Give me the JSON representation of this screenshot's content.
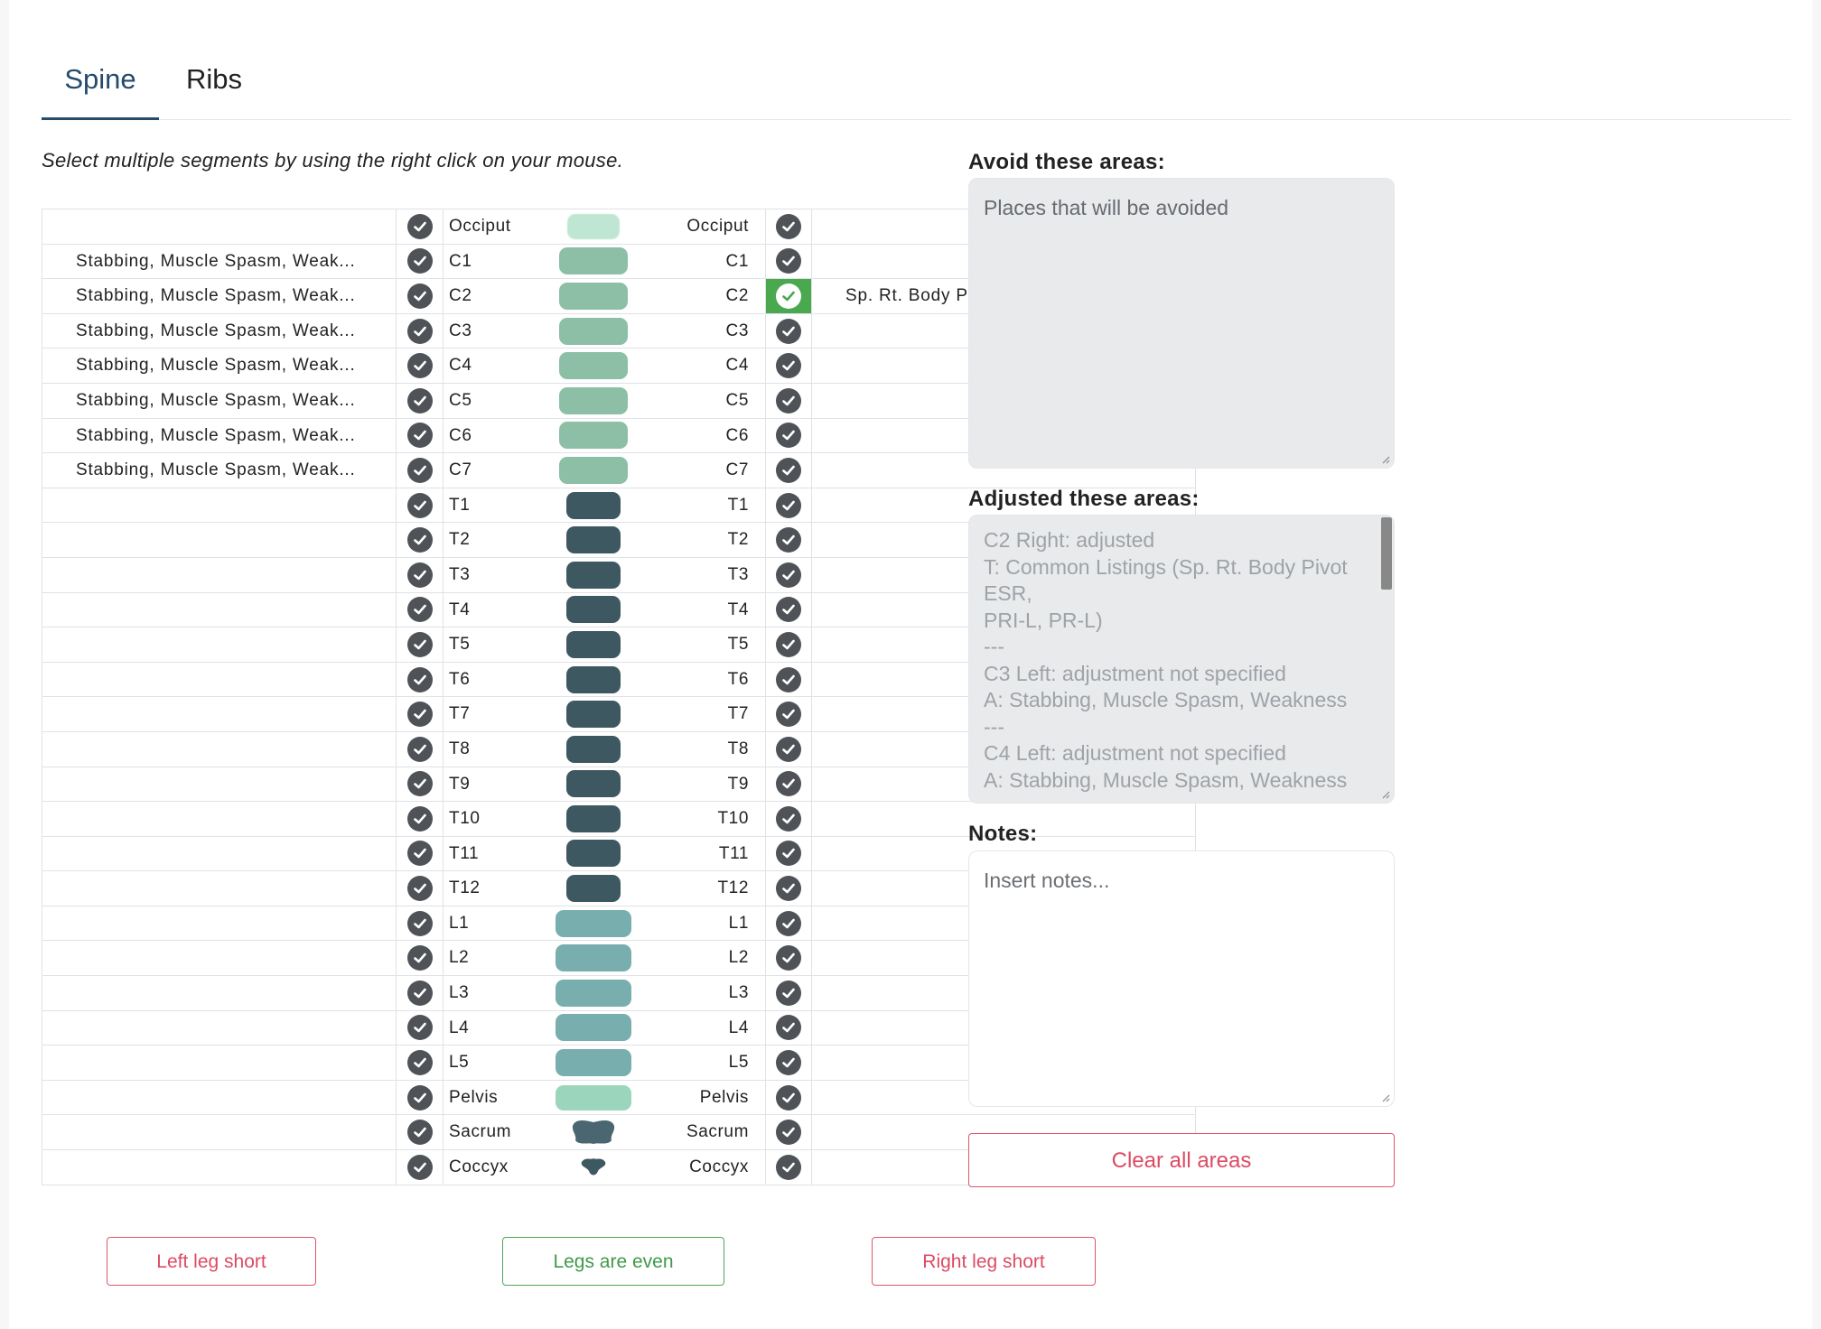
{
  "tabs": [
    {
      "label": "Spine",
      "active": true
    },
    {
      "label": "Ribs",
      "active": false
    }
  ],
  "instruction": "Select multiple segments by using the right click on your mouse.",
  "segments": [
    {
      "label": "Occiput",
      "group": "occ",
      "left_text": "",
      "right_text": "",
      "right_selected": false
    },
    {
      "label": "C1",
      "group": "cerv",
      "left_text": "Stabbing, Muscle Spasm, Weak...",
      "right_text": "",
      "right_selected": false
    },
    {
      "label": "C2",
      "group": "cerv",
      "left_text": "Stabbing, Muscle Spasm, Weak...",
      "right_text": "Sp. Rt. Body Pivot ESR, PRI-L, ...",
      "right_selected": true
    },
    {
      "label": "C3",
      "group": "cerv",
      "left_text": "Stabbing, Muscle Spasm, Weak...",
      "right_text": "",
      "right_selected": false
    },
    {
      "label": "C4",
      "group": "cerv",
      "left_text": "Stabbing, Muscle Spasm, Weak...",
      "right_text": "",
      "right_selected": false
    },
    {
      "label": "C5",
      "group": "cerv",
      "left_text": "Stabbing, Muscle Spasm, Weak...",
      "right_text": "",
      "right_selected": false
    },
    {
      "label": "C6",
      "group": "cerv",
      "left_text": "Stabbing, Muscle Spasm, Weak...",
      "right_text": "",
      "right_selected": false
    },
    {
      "label": "C7",
      "group": "cerv",
      "left_text": "Stabbing, Muscle Spasm, Weak...",
      "right_text": "",
      "right_selected": false
    },
    {
      "label": "T1",
      "group": "thor",
      "left_text": "",
      "right_text": "",
      "right_selected": false
    },
    {
      "label": "T2",
      "group": "thor",
      "left_text": "",
      "right_text": "",
      "right_selected": false
    },
    {
      "label": "T3",
      "group": "thor",
      "left_text": "",
      "right_text": "",
      "right_selected": false
    },
    {
      "label": "T4",
      "group": "thor",
      "left_text": "",
      "right_text": "",
      "right_selected": false
    },
    {
      "label": "T5",
      "group": "thor",
      "left_text": "",
      "right_text": "",
      "right_selected": false
    },
    {
      "label": "T6",
      "group": "thor",
      "left_text": "",
      "right_text": "",
      "right_selected": false
    },
    {
      "label": "T7",
      "group": "thor",
      "left_text": "",
      "right_text": "",
      "right_selected": false
    },
    {
      "label": "T8",
      "group": "thor",
      "left_text": "",
      "right_text": "",
      "right_selected": false
    },
    {
      "label": "T9",
      "group": "thor",
      "left_text": "",
      "right_text": "",
      "right_selected": false
    },
    {
      "label": "T10",
      "group": "thor",
      "left_text": "",
      "right_text": "",
      "right_selected": false
    },
    {
      "label": "T11",
      "group": "thor",
      "left_text": "",
      "right_text": "",
      "right_selected": false
    },
    {
      "label": "T12",
      "group": "thor",
      "left_text": "",
      "right_text": "",
      "right_selected": false
    },
    {
      "label": "L1",
      "group": "lumb",
      "left_text": "",
      "right_text": "",
      "right_selected": false
    },
    {
      "label": "L2",
      "group": "lumb",
      "left_text": "",
      "right_text": "",
      "right_selected": false
    },
    {
      "label": "L3",
      "group": "lumb",
      "left_text": "",
      "right_text": "",
      "right_selected": false
    },
    {
      "label": "L4",
      "group": "lumb",
      "left_text": "",
      "right_text": "",
      "right_selected": false
    },
    {
      "label": "L5",
      "group": "lumb",
      "left_text": "",
      "right_text": "",
      "right_selected": false
    },
    {
      "label": "Pelvis",
      "group": "pelv",
      "left_text": "",
      "right_text": "",
      "right_selected": false
    },
    {
      "label": "Sacrum",
      "group": "sacrum",
      "left_text": "",
      "right_text": "",
      "right_selected": false
    },
    {
      "label": "Coccyx",
      "group": "coccyx",
      "left_text": "",
      "right_text": "",
      "right_selected": false
    }
  ],
  "leg_buttons": {
    "left": "Left leg short",
    "even": "Legs are even",
    "right": "Right leg short"
  },
  "avoid": {
    "label": "Avoid these areas:",
    "placeholder": "Places that will be avoided"
  },
  "adjusted": {
    "label": "Adjusted these areas:",
    "lines": [
      "C2 Right: adjusted",
      "T: Common Listings (Sp. Rt. Body Pivot ESR,",
      "PRI-L, PR-L)",
      "---",
      "C3 Left: adjustment not specified",
      "A: Stabbing, Muscle Spasm, Weakness",
      "---",
      "C4 Left: adjustment not specified",
      "A: Stabbing, Muscle Spasm, Weakness"
    ]
  },
  "notes": {
    "label": "Notes:",
    "placeholder": "Insert notes..."
  },
  "clear_button": "Clear all areas",
  "colors": {
    "accent": "#244a6c",
    "danger": "#dc4b63",
    "success": "#4aa84f",
    "check": "#4f5257",
    "cervical": "#8cbfa6",
    "thoracic": "#3e5861",
    "lumbar": "#79aeae"
  }
}
